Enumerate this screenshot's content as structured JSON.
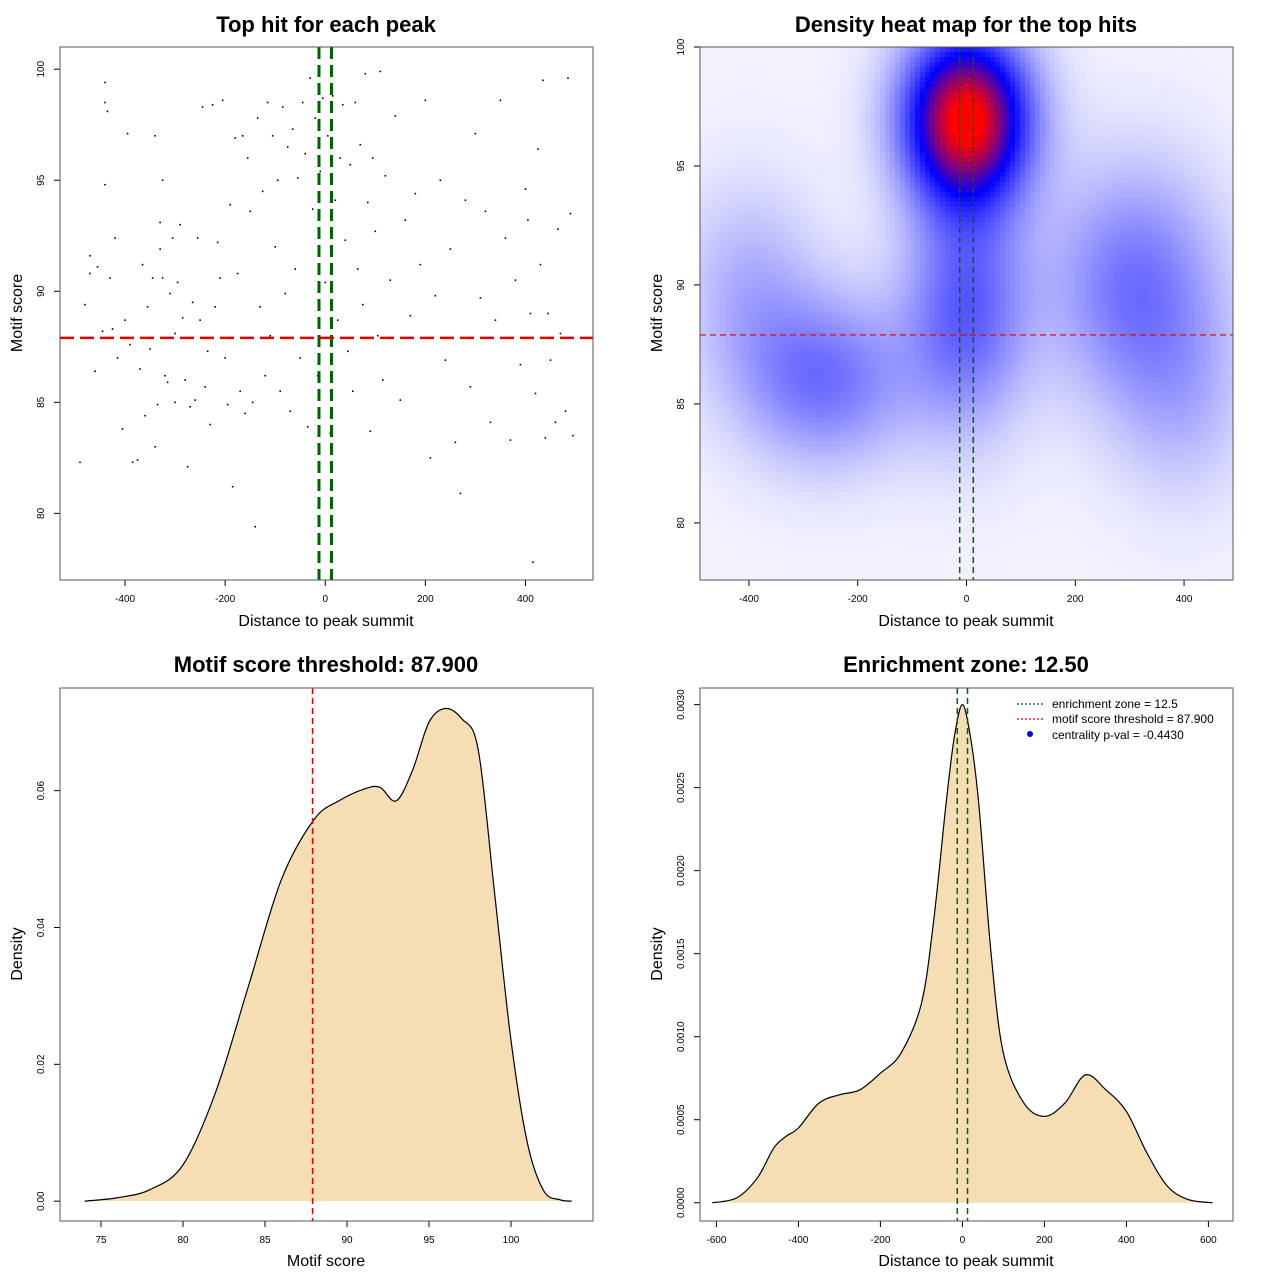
{
  "chart_data": [
    {
      "type": "scatter",
      "title": "Top hit for each peak",
      "xlabel": "Distance to peak summit",
      "ylabel": "Motif score",
      "xlim": [
        -530,
        535
      ],
      "ylim": [
        77,
        101
      ],
      "xticks": [
        -400,
        -200,
        0,
        200,
        400
      ],
      "yticks": [
        80,
        85,
        90,
        95,
        100
      ],
      "xtick_labels": [
        "-400",
        "-200",
        "0",
        "200",
        "400"
      ],
      "ytick_labels": [
        "80",
        "85",
        "90",
        "95",
        "100"
      ],
      "hlines": [
        {
          "y": 87.9,
          "color": "#dd0000",
          "style": "dashed"
        }
      ],
      "vlines": [
        {
          "x": -12.5,
          "color": "#006400",
          "style": "dashed"
        },
        {
          "x": 12.5,
          "color": "#006400",
          "style": "dashed"
        }
      ],
      "point_color": "#000000",
      "grid": false,
      "points": [
        [
          -490,
          82.3
        ],
        [
          -480,
          89.4
        ],
        [
          -470,
          91.6
        ],
        [
          -470,
          90.8
        ],
        [
          -460,
          86.4
        ],
        [
          -455,
          91.1
        ],
        [
          -445,
          88.2
        ],
        [
          -440,
          94.8
        ],
        [
          -440,
          99.4
        ],
        [
          -440,
          98.5
        ],
        [
          -435,
          98.1
        ],
        [
          -430,
          90.6
        ],
        [
          -425,
          88.3
        ],
        [
          -420,
          92.4
        ],
        [
          -415,
          87.0
        ],
        [
          -405,
          83.8
        ],
        [
          -400,
          88.7
        ],
        [
          -395,
          97.1
        ],
        [
          -390,
          87.6
        ],
        [
          -385,
          82.3
        ],
        [
          -375,
          82.4
        ],
        [
          -370,
          86.5
        ],
        [
          -365,
          91.2
        ],
        [
          -360,
          84.4
        ],
        [
          -355,
          89.3
        ],
        [
          -350,
          87.4
        ],
        [
          -345,
          90.6
        ],
        [
          -340,
          83.0
        ],
        [
          -340,
          97.0
        ],
        [
          -335,
          84.9
        ],
        [
          -330,
          93.1
        ],
        [
          -330,
          91.9
        ],
        [
          -325,
          90.6
        ],
        [
          -325,
          95.0
        ],
        [
          -320,
          86.2
        ],
        [
          -315,
          85.9
        ],
        [
          -310,
          89.9
        ],
        [
          -305,
          92.4
        ],
        [
          -300,
          88.1
        ],
        [
          -300,
          85.0
        ],
        [
          -295,
          90.4
        ],
        [
          -290,
          93.0
        ],
        [
          -285,
          88.8
        ],
        [
          -280,
          86.0
        ],
        [
          -275,
          82.1
        ],
        [
          -270,
          84.8
        ],
        [
          -265,
          89.5
        ],
        [
          -260,
          85.1
        ],
        [
          -255,
          92.4
        ],
        [
          -250,
          88.7
        ],
        [
          -245,
          98.3
        ],
        [
          -240,
          85.7
        ],
        [
          -235,
          87.3
        ],
        [
          -230,
          84.0
        ],
        [
          -225,
          98.4
        ],
        [
          -220,
          89.3
        ],
        [
          -215,
          92.2
        ],
        [
          -210,
          90.6
        ],
        [
          -205,
          98.6
        ],
        [
          -200,
          87.0
        ],
        [
          -195,
          84.9
        ],
        [
          -190,
          93.9
        ],
        [
          -185,
          81.2
        ],
        [
          -180,
          96.9
        ],
        [
          -175,
          90.8
        ],
        [
          -170,
          85.5
        ],
        [
          -165,
          97.0
        ],
        [
          -160,
          84.5
        ],
        [
          -155,
          96.0
        ],
        [
          -150,
          93.6
        ],
        [
          -145,
          85.0
        ],
        [
          -140,
          79.4
        ],
        [
          -135,
          97.8
        ],
        [
          -130,
          89.3
        ],
        [
          -125,
          94.5
        ],
        [
          -120,
          86.2
        ],
        [
          -115,
          98.5
        ],
        [
          -110,
          88.0
        ],
        [
          -105,
          97.0
        ],
        [
          -100,
          92.0
        ],
        [
          -95,
          95.0
        ],
        [
          -90,
          85.5
        ],
        [
          -85,
          98.3
        ],
        [
          -80,
          89.9
        ],
        [
          -75,
          96.5
        ],
        [
          -70,
          84.6
        ],
        [
          -65,
          97.3
        ],
        [
          -60,
          91.0
        ],
        [
          -55,
          95.1
        ],
        [
          -50,
          87.0
        ],
        [
          -45,
          98.5
        ],
        [
          -40,
          96.2
        ],
        [
          -35,
          83.9
        ],
        [
          -30,
          99.6
        ],
        [
          -25,
          93.7
        ],
        [
          -20,
          97.8
        ],
        [
          -15,
          86.2
        ],
        [
          -10,
          95.4
        ],
        [
          -5,
          98.7
        ],
        [
          0,
          90.4
        ],
        [
          5,
          97.0
        ],
        [
          10,
          83.6
        ],
        [
          15,
          98.8
        ],
        [
          20,
          94.1
        ],
        [
          25,
          88.7
        ],
        [
          30,
          96.0
        ],
        [
          35,
          98.4
        ],
        [
          40,
          92.3
        ],
        [
          45,
          87.3
        ],
        [
          50,
          95.7
        ],
        [
          55,
          85.5
        ],
        [
          60,
          98.5
        ],
        [
          65,
          91.0
        ],
        [
          70,
          96.6
        ],
        [
          75,
          89.4
        ],
        [
          80,
          99.8
        ],
        [
          85,
          94.0
        ],
        [
          90,
          83.7
        ],
        [
          95,
          96.0
        ],
        [
          100,
          92.7
        ],
        [
          105,
          88.0
        ],
        [
          110,
          99.9
        ],
        [
          115,
          86.0
        ],
        [
          120,
          95.2
        ],
        [
          130,
          90.5
        ],
        [
          140,
          97.9
        ],
        [
          150,
          85.1
        ],
        [
          160,
          93.2
        ],
        [
          170,
          88.9
        ],
        [
          180,
          94.4
        ],
        [
          190,
          91.2
        ],
        [
          200,
          98.6
        ],
        [
          210,
          82.5
        ],
        [
          220,
          89.8
        ],
        [
          230,
          95.0
        ],
        [
          240,
          86.9
        ],
        [
          250,
          91.9
        ],
        [
          260,
          83.2
        ],
        [
          270,
          80.9
        ],
        [
          280,
          94.1
        ],
        [
          290,
          85.7
        ],
        [
          300,
          97.1
        ],
        [
          310,
          89.7
        ],
        [
          320,
          93.6
        ],
        [
          330,
          84.1
        ],
        [
          340,
          88.7
        ],
        [
          350,
          98.6
        ],
        [
          360,
          92.4
        ],
        [
          370,
          83.3
        ],
        [
          380,
          90.5
        ],
        [
          390,
          86.7
        ],
        [
          400,
          94.6
        ],
        [
          405,
          93.2
        ],
        [
          410,
          89.0
        ],
        [
          415,
          77.8
        ],
        [
          420,
          85.4
        ],
        [
          425,
          96.4
        ],
        [
          430,
          91.2
        ],
        [
          435,
          99.5
        ],
        [
          440,
          83.4
        ],
        [
          445,
          89.0
        ],
        [
          450,
          86.9
        ],
        [
          460,
          84.1
        ],
        [
          465,
          92.8
        ],
        [
          470,
          88.1
        ],
        [
          480,
          84.6
        ],
        [
          485,
          99.6
        ],
        [
          490,
          93.5
        ],
        [
          495,
          83.5
        ]
      ]
    },
    {
      "type": "heatmap",
      "title": "Density heat map for the top hits",
      "xlabel": "Distance to peak summit",
      "ylabel": "Motif score",
      "xlim": [
        -490,
        490
      ],
      "ylim": [
        77.6,
        100
      ],
      "xticks": [
        -400,
        -200,
        0,
        200,
        400
      ],
      "yticks": [
        80,
        85,
        90,
        95,
        100
      ],
      "xtick_labels": [
        "-400",
        "-200",
        "0",
        "200",
        "400"
      ],
      "ytick_labels": [
        "80",
        "85",
        "90",
        "95",
        "100"
      ],
      "hlines": [
        {
          "y": 87.9,
          "color": "#dd0000",
          "style": "dashed"
        }
      ],
      "vlines": [
        {
          "x": -12.5,
          "color": "#006400",
          "style": "dashed"
        },
        {
          "x": 12.5,
          "color": "#006400",
          "style": "dashed"
        }
      ],
      "color_scale": [
        "#ffffff",
        "#0000ff",
        "#ff0000"
      ],
      "density_centers": [
        {
          "x": 0,
          "y": 97,
          "weight": 1.0
        },
        {
          "x": 0,
          "y": 89,
          "weight": 0.35
        },
        {
          "x": -260,
          "y": 86,
          "weight": 0.3
        },
        {
          "x": 310,
          "y": 90,
          "weight": 0.3
        },
        {
          "x": -400,
          "y": 90,
          "weight": 0.15
        },
        {
          "x": 400,
          "y": 85,
          "weight": 0.12
        }
      ]
    },
    {
      "type": "area",
      "title": "Motif score threshold: 87.900",
      "xlabel": "Motif score",
      "ylabel": "Density",
      "xlim": [
        72.5,
        105
      ],
      "ylim": [
        -0.0029,
        0.075
      ],
      "xticks": [
        75,
        80,
        85,
        90,
        95,
        100
      ],
      "yticks": [
        0.0,
        0.02,
        0.04,
        0.06
      ],
      "xtick_labels": [
        "75",
        "80",
        "85",
        "90",
        "95",
        "100"
      ],
      "ytick_labels": [
        "0.00",
        "0.02",
        "0.04",
        "0.06"
      ],
      "fill_color": "#f5deb3",
      "vlines": [
        {
          "x": 87.9,
          "color": "#dd0000",
          "style": "dashed"
        }
      ],
      "x": [
        74,
        76,
        78,
        80,
        82,
        84,
        86,
        88,
        89.5,
        91,
        92,
        93,
        94,
        95,
        96,
        97,
        98,
        99,
        100,
        101,
        102,
        103,
        103.7
      ],
      "y": [
        0.0,
        0.0005,
        0.0017,
        0.0053,
        0.016,
        0.0315,
        0.047,
        0.0558,
        0.0585,
        0.0602,
        0.0605,
        0.0585,
        0.063,
        0.07,
        0.072,
        0.0705,
        0.066,
        0.045,
        0.0235,
        0.0085,
        0.0015,
        0.0002,
        0.0
      ]
    },
    {
      "type": "area",
      "title": "Enrichment zone: 12.50",
      "xlabel": "Distance to peak summit",
      "ylabel": "Density",
      "xlim": [
        -640,
        660
      ],
      "ylim": [
        -0.00011,
        0.0031
      ],
      "xticks": [
        -600,
        -400,
        -200,
        0,
        200,
        400,
        600
      ],
      "yticks": [
        0.0,
        0.0005,
        0.001,
        0.0015,
        0.002,
        0.0025,
        0.003
      ],
      "xtick_labels": [
        "-600",
        "-400",
        "-200",
        "0",
        "200",
        "400",
        "600"
      ],
      "ytick_labels": [
        "0.0000",
        "0.0005",
        "0.0010",
        "0.0015",
        "0.0020",
        "0.0025",
        "0.0030"
      ],
      "fill_color": "#f5deb3",
      "vlines": [
        {
          "x": -12.5,
          "color": "#006400",
          "style": "dashed"
        },
        {
          "x": 12.5,
          "color": "#006400",
          "style": "dashed"
        }
      ],
      "legend": {
        "placement": "top-right",
        "entries": [
          {
            "label": "enrichment zone = 12.5",
            "color": "#006400",
            "style": "dotted-line"
          },
          {
            "label": "motif score threshold = 87.900",
            "color": "#dd0000",
            "style": "dotted-line"
          },
          {
            "label": "centrality p-val = -0.4430",
            "color": "#0000ff",
            "style": "point"
          }
        ]
      },
      "x": [
        -610,
        -550,
        -500,
        -460,
        -430,
        -400,
        -350,
        -300,
        -250,
        -200,
        -150,
        -100,
        -70,
        -40,
        -20,
        0,
        20,
        40,
        70,
        100,
        150,
        200,
        250,
        300,
        350,
        400,
        450,
        500,
        550,
        610
      ],
      "y": [
        0.0,
        3e-05,
        0.00015,
        0.00033,
        0.0004,
        0.00045,
        0.0006,
        0.00065,
        0.00068,
        0.00078,
        0.0009,
        0.0012,
        0.0017,
        0.0024,
        0.0028,
        0.003,
        0.0028,
        0.0024,
        0.0015,
        0.0009,
        0.0006,
        0.00052,
        0.0006,
        0.00077,
        0.00068,
        0.00055,
        0.0003,
        0.0001,
        2e-05,
        0.0
      ]
    }
  ]
}
